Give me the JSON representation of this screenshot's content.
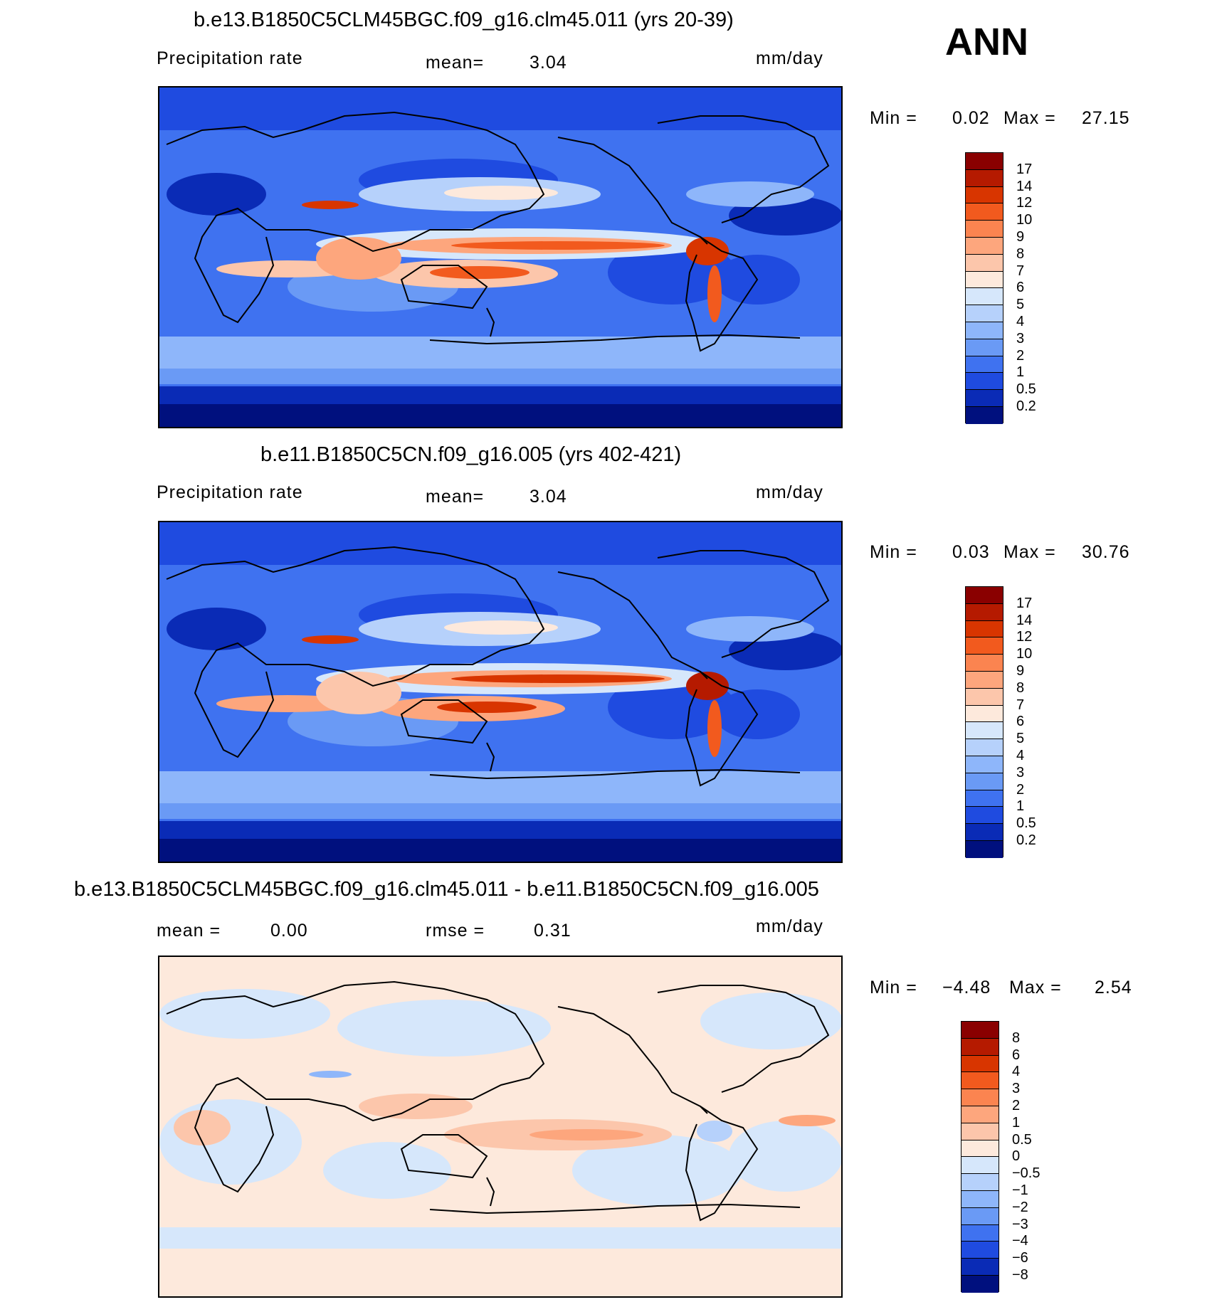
{
  "annotation": "ANN",
  "panels": [
    {
      "title": "b.e13.B1850C5CLM45BGC.f09_g16.clm45.011 (yrs 20-39)",
      "left_label": "Precipitation rate",
      "center_label": "mean=",
      "center_value": "3.04",
      "units": "mm/day",
      "min_label": "Min =",
      "min_value": "0.02",
      "max_label": "Max =",
      "max_value": "27.15",
      "levels": [
        "17",
        "14",
        "12",
        "10",
        "9",
        "8",
        "7",
        "6",
        "5",
        "4",
        "3",
        "2",
        "1",
        "0.5",
        "0.2"
      ],
      "colors": [
        "#8a0000",
        "#b51a00",
        "#d83500",
        "#f25a1e",
        "#fb8450",
        "#fda67d",
        "#fcc6ab",
        "#fde9dc",
        "#d6e7fb",
        "#b6d1fb",
        "#8eb6fa",
        "#6a9af5",
        "#3f72f0",
        "#1f4be0",
        "#0a2bb6",
        "#00107e"
      ]
    },
    {
      "title": "b.e11.B1850C5CN.f09_g16.005 (yrs 402-421)",
      "left_label": "Precipitation rate",
      "center_label": "mean=",
      "center_value": "3.04",
      "units": "mm/day",
      "min_label": "Min =",
      "min_value": "0.03",
      "max_label": "Max =",
      "max_value": "30.76",
      "levels": [
        "17",
        "14",
        "12",
        "10",
        "9",
        "8",
        "7",
        "6",
        "5",
        "4",
        "3",
        "2",
        "1",
        "0.5",
        "0.2"
      ],
      "colors": [
        "#8a0000",
        "#b51a00",
        "#d83500",
        "#f25a1e",
        "#fb8450",
        "#fda67d",
        "#fcc6ab",
        "#fde9dc",
        "#d6e7fb",
        "#b6d1fb",
        "#8eb6fa",
        "#6a9af5",
        "#3f72f0",
        "#1f4be0",
        "#0a2bb6",
        "#00107e"
      ]
    },
    {
      "title": "b.e13.B1850C5CLM45BGC.f09_g16.clm45.011 - b.e11.B1850C5CN.f09_g16.005",
      "left_label": "mean =",
      "left_value": "0.00",
      "center_label": "rmse =",
      "center_value": "0.31",
      "units": "mm/day",
      "min_label": "Min =",
      "min_value": "−4.48",
      "max_label": "Max =",
      "max_value": "2.54",
      "levels": [
        "8",
        "6",
        "4",
        "3",
        "2",
        "1",
        "0.5",
        "0",
        "−0.5",
        "−1",
        "−2",
        "−3",
        "−4",
        "−6",
        "−8"
      ],
      "colors": [
        "#8a0000",
        "#b51a00",
        "#d83500",
        "#f25a1e",
        "#fb8450",
        "#fda67d",
        "#fcc6ab",
        "#fde9dc",
        "#d6e7fb",
        "#b6d1fb",
        "#8eb6fa",
        "#6a9af5",
        "#3f72f0",
        "#1f4be0",
        "#0a2bb6",
        "#00107e"
      ]
    }
  ]
}
